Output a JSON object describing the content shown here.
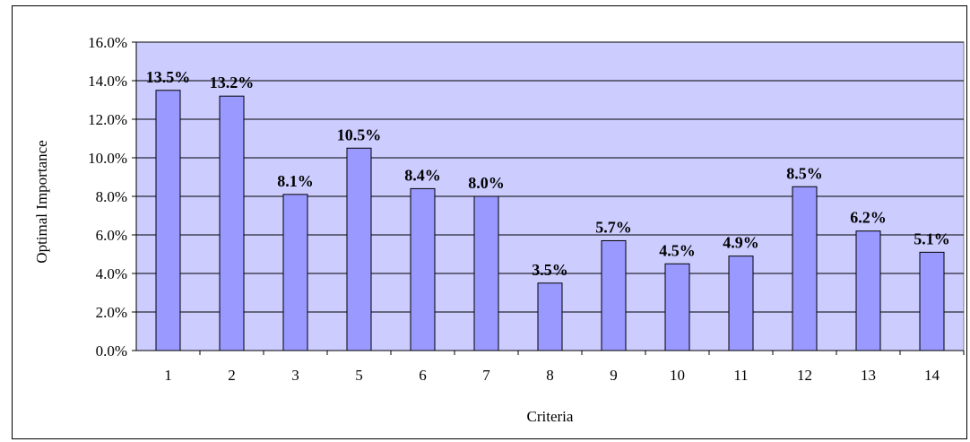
{
  "chart_data": {
    "type": "bar",
    "categories": [
      "1",
      "2",
      "3",
      "5",
      "6",
      "7",
      "8",
      "9",
      "10",
      "11",
      "12",
      "13",
      "14"
    ],
    "values": [
      13.5,
      13.2,
      8.1,
      10.5,
      8.4,
      8.0,
      3.5,
      5.7,
      4.5,
      4.9,
      8.5,
      6.2,
      5.1
    ],
    "data_labels": [
      "13.5%",
      "13.2%",
      "8.1%",
      "10.5%",
      "8.4%",
      "8.0%",
      "3.5%",
      "5.7%",
      "4.5%",
      "4.9%",
      "8.5%",
      "6.2%",
      "5.1%"
    ],
    "ylim": [
      0,
      16
    ],
    "yticks": [
      0,
      2,
      4,
      6,
      8,
      10,
      12,
      14,
      16
    ],
    "ytick_labels": [
      "0.0%",
      "2.0%",
      "4.0%",
      "6.0%",
      "8.0%",
      "10.0%",
      "12.0%",
      "14.0%",
      "16.0%"
    ],
    "xlabel": "Criteria",
    "ylabel": "Optimal Importance",
    "grid": true,
    "colors": {
      "plot_background": "#ccccff",
      "bar_fill": "#9999ff",
      "bar_stroke": "#000000",
      "gridline": "#000000"
    }
  }
}
